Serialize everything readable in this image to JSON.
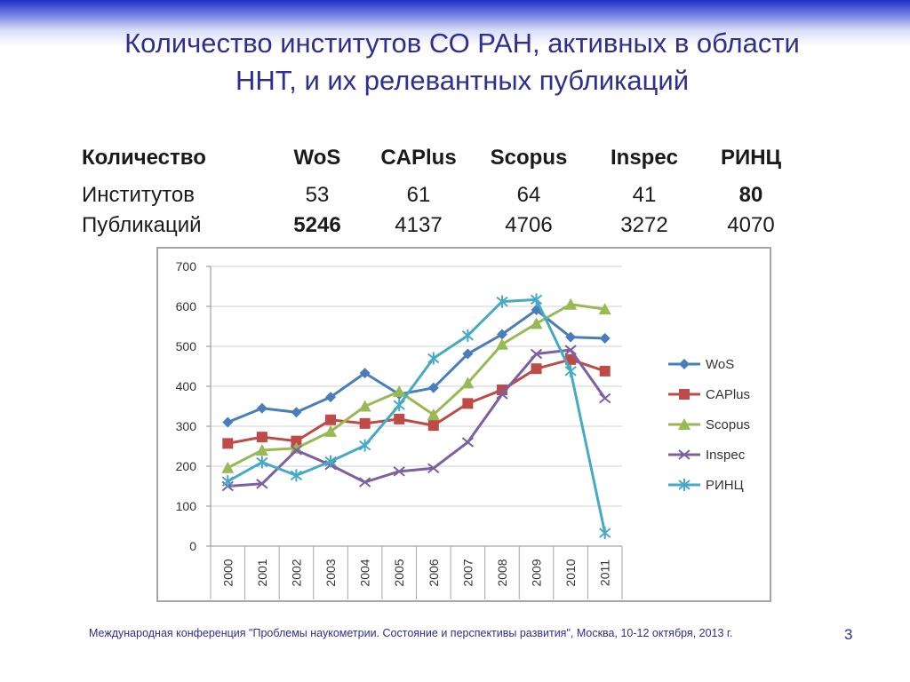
{
  "slide": {
    "title_line1": "Количество институтов СО РАН, активных в области",
    "title_line2": "ННТ, и их релевантных публикаций",
    "footer": "Международная конференция \"Проблемы наукометрии. Состояние и перспективы развития\", Москва, 10-12 октября, 2013 г.",
    "page_number": "3"
  },
  "stats_table": {
    "header": [
      "Количество",
      "WoS",
      "CAPlus",
      "Scopus",
      "Inspec",
      "РИНЦ"
    ],
    "rows": [
      {
        "label": "Институтов",
        "values": [
          "53",
          "61",
          "64",
          "41",
          "80"
        ],
        "bold": [
          false,
          false,
          false,
          false,
          true
        ]
      },
      {
        "label": "Публикаций",
        "values": [
          "5246",
          "4137",
          "4706",
          "3272",
          "4070"
        ],
        "bold": [
          true,
          false,
          false,
          false,
          false
        ]
      }
    ]
  },
  "chart_data": {
    "type": "line",
    "x": [
      "2000",
      "2001",
      "2002",
      "2003",
      "2004",
      "2005",
      "2006",
      "2007",
      "2008",
      "2009",
      "2010",
      "2011"
    ],
    "ylim": [
      0,
      700
    ],
    "yticks": [
      0,
      100,
      200,
      300,
      400,
      500,
      600,
      700
    ],
    "grid": true,
    "legend": "right",
    "series": [
      {
        "name": "WoS",
        "color": "#4a7ebb",
        "marker": "diamond",
        "values": [
          310,
          345,
          335,
          373,
          433,
          380,
          396,
          481,
          530,
          591,
          523,
          520
        ]
      },
      {
        "name": "CAPlus",
        "color": "#be4b48",
        "marker": "square",
        "values": [
          257,
          273,
          263,
          316,
          307,
          318,
          302,
          357,
          391,
          444,
          467,
          438
        ]
      },
      {
        "name": "Scopus",
        "color": "#98b954",
        "marker": "triangle",
        "values": [
          196,
          240,
          245,
          287,
          350,
          387,
          329,
          408,
          505,
          557,
          605,
          593
        ]
      },
      {
        "name": "Inspec",
        "color": "#7d60a0",
        "marker": "x",
        "values": [
          150,
          156,
          240,
          203,
          160,
          187,
          195,
          260,
          380,
          481,
          491,
          370
        ]
      },
      {
        "name": "РИНЦ",
        "color": "#46aac5",
        "marker": "star",
        "values": [
          162,
          210,
          177,
          212,
          252,
          353,
          470,
          527,
          612,
          617,
          438,
          33
        ]
      }
    ]
  }
}
